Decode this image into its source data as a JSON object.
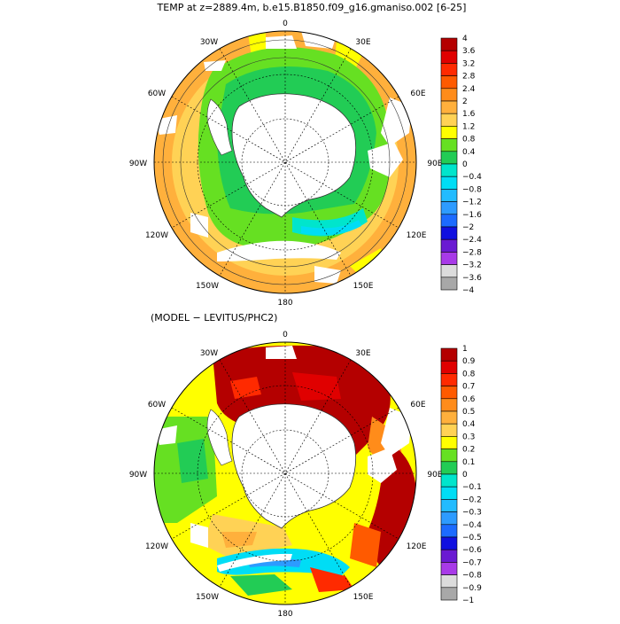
{
  "chart_data": [
    {
      "type": "heatmap",
      "title": "TEMP at z=2889.4m, b.e15.B1850.f09_g16.gmaniso.002 [6-25]",
      "projection": "south-polar-stereographic",
      "longitude_labels": [
        "0",
        "30E",
        "60E",
        "90E",
        "120E",
        "150E",
        "180",
        "150W",
        "120W",
        "90W",
        "60W",
        "30W"
      ],
      "colorbar": {
        "labels": [
          "4",
          "3.6",
          "3.2",
          "2.8",
          "2.4",
          "2",
          "1.6",
          "1.2",
          "0.8",
          "0.4",
          "0",
          "−0.4",
          "−0.8",
          "−1.2",
          "−1.6",
          "−2",
          "−2.4",
          "−2.8",
          "−3.2",
          "−3.6",
          "−4"
        ],
        "colors": [
          "#b40000",
          "#e00000",
          "#ff2a00",
          "#ff5a00",
          "#ff8c1a",
          "#ffb03c",
          "#ffd255",
          "#ffff00",
          "#66e022",
          "#22cc55",
          "#00e5cc",
          "#00ddf5",
          "#22bbff",
          "#2d9bff",
          "#1c6bff",
          "#1010e0",
          "#6a1ad2",
          "#a83ae8",
          "#dcdcdc",
          "#a8a8a8"
        ]
      }
    },
    {
      "type": "heatmap",
      "title": "(MODEL − LEVITUS/PHC2)",
      "projection": "south-polar-stereographic",
      "longitude_labels": [
        "0",
        "30E",
        "60E",
        "90E",
        "120E",
        "150E",
        "180",
        "150W",
        "120W",
        "90W",
        "60W",
        "30W"
      ],
      "colorbar": {
        "labels": [
          "1",
          "0.9",
          "0.8",
          "0.7",
          "0.6",
          "0.5",
          "0.4",
          "0.3",
          "0.2",
          "0.1",
          "0",
          "−0.1",
          "−0.2",
          "−0.3",
          "−0.4",
          "−0.5",
          "−0.6",
          "−0.7",
          "−0.8",
          "−0.9",
          "−1"
        ],
        "colors": [
          "#b40000",
          "#e00000",
          "#ff2a00",
          "#ff5a00",
          "#ff8c1a",
          "#ffb03c",
          "#ffd255",
          "#ffff00",
          "#66e022",
          "#22cc55",
          "#00e5cc",
          "#00ddf5",
          "#22bbff",
          "#2d9bff",
          "#1c6bff",
          "#1010e0",
          "#6a1ad2",
          "#a83ae8",
          "#dcdcdc",
          "#a8a8a8"
        ]
      }
    }
  ]
}
